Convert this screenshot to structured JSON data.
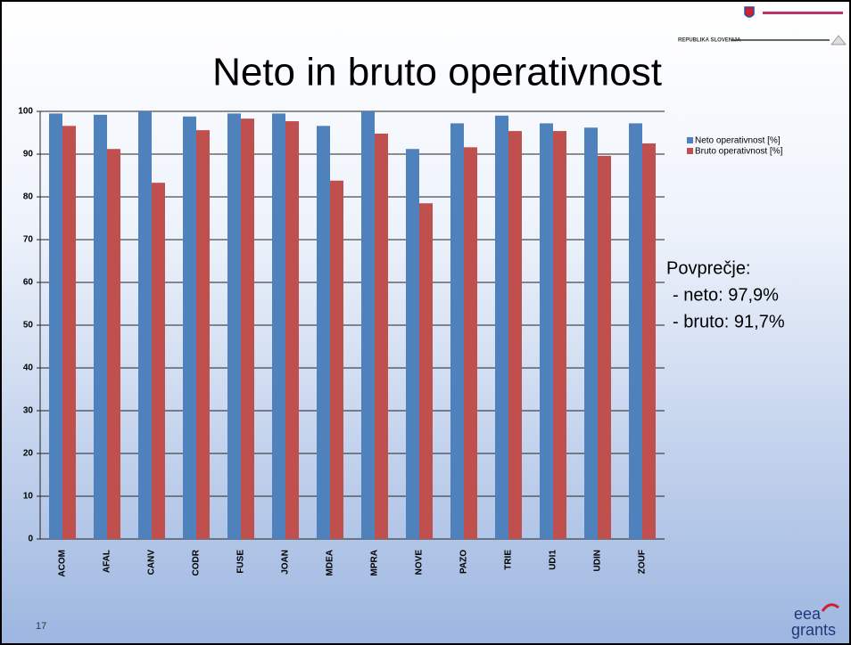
{
  "chart_data": {
    "type": "bar",
    "title": "Neto in bruto operativnost",
    "categories": [
      "ACOM",
      "AFAL",
      "CANV",
      "CODR",
      "FUSE",
      "JOAN",
      "MDEA",
      "MPRA",
      "NOVE",
      "PAZO",
      "TRIE",
      "UDI1",
      "UDIN",
      "ZOUF"
    ],
    "series": [
      {
        "name": "Neto operativnost [%]",
        "color": "#4f81bd",
        "values": [
          99.5,
          99.2,
          100,
          98.8,
          99.5,
          99.5,
          96.6,
          100,
          91.2,
          97.2,
          99,
          97.2,
          96.2,
          97.2
        ]
      },
      {
        "name": "Bruto operativnost [%]",
        "color": "#c0504d",
        "values": [
          96.6,
          91.2,
          83.3,
          95.6,
          98.3,
          97.7,
          83.8,
          94.8,
          78.5,
          91.6,
          95.4,
          95.4,
          89.6,
          92.5
        ]
      }
    ],
    "ylim": [
      0,
      100
    ],
    "yticks": [
      0,
      10,
      20,
      30,
      40,
      50,
      60,
      70,
      80,
      90,
      100
    ],
    "grid": true,
    "legend": "right",
    "annotation": [
      "Povprečje:",
      "- neto: 97,9%",
      "- bruto: 91,7%"
    ]
  },
  "slide": {
    "number": "17",
    "logo_text": "REPUBLIKA SLOVENIJA",
    "brand": [
      "eea",
      "grants"
    ]
  }
}
